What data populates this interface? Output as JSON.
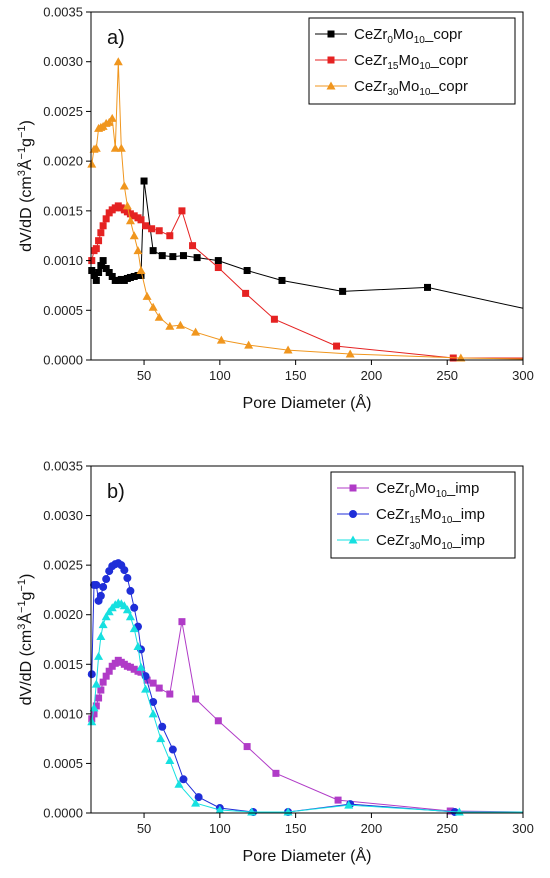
{
  "chart_data": [
    {
      "type": "line",
      "panel_label": "a)",
      "xlabel": "Pore Diameter (Å)",
      "ylabel": {
        "base": "dV/dD (cm",
        "sup1": "3",
        "mid1": "Å",
        "sup2": "−1",
        "mid2": "g",
        "sup3": "−1",
        "end": ")"
      },
      "xlim": [
        15,
        300
      ],
      "ylim": [
        0,
        0.0035
      ],
      "xticks": [
        50,
        100,
        150,
        200,
        250,
        300
      ],
      "yticks": [
        0.0,
        0.0005,
        0.001,
        0.0015,
        0.002,
        0.0025,
        0.003,
        0.0035
      ],
      "xtick_labels": [
        "50",
        "100",
        "150",
        "200",
        "250",
        "300"
      ],
      "ytick_labels": [
        "0.0000",
        "0.0005",
        "0.0010",
        "0.0015",
        "0.0020",
        "0.0025",
        "0.0030",
        "0.0035"
      ],
      "legend_position": "top-right",
      "series": [
        {
          "name": "CeZr0Mo10_copr",
          "legend": {
            "a": "CeZr",
            "sub1": "0",
            "b": "Mo",
            "sub2": "10",
            "c": "_copr"
          },
          "color": "#000000",
          "marker": "square",
          "x": [
            15.5,
            17,
            18.5,
            20,
            21.5,
            23,
            25,
            27,
            29,
            31,
            33,
            35,
            37,
            39,
            41,
            43.5,
            46,
            48,
            50,
            56,
            62,
            69,
            76,
            85,
            99,
            118,
            141,
            181,
            237,
            300
          ],
          "y": [
            0.0009,
            0.00085,
            0.0008,
            0.00088,
            0.00095,
            0.001,
            0.00092,
            0.00088,
            0.00084,
            0.0008,
            0.0008,
            0.00081,
            0.0008,
            0.00082,
            0.00083,
            0.00084,
            0.00085,
            0.00085,
            0.0018,
            0.0011,
            0.00105,
            0.00104,
            0.00105,
            0.00103,
            0.001,
            0.0009,
            0.0008,
            0.00069,
            0.00073,
            0.00052
          ]
        },
        {
          "name": "CeZr15Mo10_copr",
          "legend": {
            "a": "CeZr",
            "sub1": "15",
            "b": "Mo",
            "sub2": "10",
            "c": "_copr"
          },
          "color": "#e52222",
          "marker": "square",
          "x": [
            15.5,
            17,
            18.5,
            20,
            21.5,
            23,
            25,
            27,
            29,
            31,
            33,
            35,
            37,
            39,
            41,
            43.5,
            46,
            48,
            51,
            55,
            60,
            67,
            75,
            82,
            99,
            117,
            136,
            177,
            254,
            300
          ],
          "y": [
            0.001,
            0.0011,
            0.00112,
            0.0012,
            0.00128,
            0.00135,
            0.00142,
            0.00148,
            0.00151,
            0.00153,
            0.00155,
            0.00153,
            0.00151,
            0.00149,
            0.00147,
            0.00145,
            0.00143,
            0.00141,
            0.00135,
            0.00132,
            0.0013,
            0.00125,
            0.0015,
            0.00115,
            0.00093,
            0.00067,
            0.00041,
            0.00014,
            2e-05,
            2e-05
          ]
        },
        {
          "name": "CeZr30Mo10_copr",
          "legend": {
            "a": "CeZr",
            "sub1": "30",
            "b": "Mo",
            "sub2": "10",
            "c": "_copr"
          },
          "color": "#f0961e",
          "marker": "triangle",
          "x": [
            15.5,
            17,
            18.5,
            20,
            21.5,
            23,
            25,
            27,
            29,
            31,
            33,
            35,
            37,
            39,
            41,
            43.5,
            46,
            48,
            52,
            56,
            60,
            67,
            74,
            84,
            101,
            119,
            145,
            186,
            259,
            300
          ],
          "y": [
            0.00197,
            0.00212,
            0.00213,
            0.00233,
            0.00234,
            0.00235,
            0.00238,
            0.00239,
            0.00243,
            0.00213,
            0.003,
            0.00213,
            0.00175,
            0.00155,
            0.0014,
            0.00125,
            0.0011,
            0.0009,
            0.00064,
            0.00053,
            0.00043,
            0.00034,
            0.00035,
            0.00028,
            0.0002,
            0.00015,
            0.0001,
            6e-05,
            2e-05,
            1e-05
          ]
        }
      ]
    },
    {
      "type": "line",
      "panel_label": "b)",
      "xlabel": "Pore Diameter (Å)",
      "ylabel": {
        "base": "dV/dD (cm",
        "sup1": "3",
        "mid1": "Å",
        "sup2": "−1",
        "mid2": "g",
        "sup3": "−1",
        "end": ")"
      },
      "xlim": [
        15,
        300
      ],
      "ylim": [
        0,
        0.0035
      ],
      "xticks": [
        50,
        100,
        150,
        200,
        250,
        300
      ],
      "yticks": [
        0.0,
        0.0005,
        0.001,
        0.0015,
        0.002,
        0.0025,
        0.003,
        0.0035
      ],
      "xtick_labels": [
        "50",
        "100",
        "150",
        "200",
        "250",
        "300"
      ],
      "ytick_labels": [
        "0.0000",
        "0.0005",
        "0.0010",
        "0.0015",
        "0.0020",
        "0.0025",
        "0.0030",
        "0.0035"
      ],
      "legend_position": "top-right",
      "series": [
        {
          "name": "CeZr0Mo10_imp",
          "legend": {
            "a": "CeZr",
            "sub1": "0",
            "b": "Mo",
            "sub2": "10",
            "c": "_imp"
          },
          "color": "#b03bc7",
          "marker": "square",
          "x": [
            15.5,
            17,
            18.5,
            20,
            21.5,
            23,
            25,
            27,
            29,
            31,
            33,
            35,
            37,
            39,
            41,
            43.5,
            46,
            48,
            52,
            56,
            60,
            67,
            75,
            84,
            99,
            118,
            137,
            178,
            252,
            300
          ],
          "y": [
            0.00095,
            0.001,
            0.00108,
            0.00116,
            0.00124,
            0.00132,
            0.00138,
            0.00143,
            0.00148,
            0.00151,
            0.00154,
            0.00152,
            0.0015,
            0.00148,
            0.00147,
            0.00145,
            0.00143,
            0.00142,
            0.00134,
            0.00131,
            0.00126,
            0.0012,
            0.00193,
            0.00115,
            0.00093,
            0.00067,
            0.0004,
            0.00013,
            2e-05,
            1e-05
          ]
        },
        {
          "name": "CeZr15Mo10_imp",
          "legend": {
            "a": "CeZr",
            "sub1": "15",
            "b": "Mo",
            "sub2": "10",
            "c": "_imp"
          },
          "color": "#1f2ed8",
          "marker": "circle",
          "x": [
            15.5,
            17,
            18.5,
            20,
            21.5,
            23,
            25,
            27,
            29,
            31,
            33,
            35,
            37,
            39,
            41,
            43.5,
            46,
            48,
            51,
            56,
            62,
            69,
            76,
            86,
            100,
            122,
            145,
            186,
            255,
            300
          ],
          "y": [
            0.0014,
            0.0023,
            0.0023,
            0.00214,
            0.00219,
            0.00228,
            0.00236,
            0.00244,
            0.00249,
            0.00251,
            0.00252,
            0.0025,
            0.00245,
            0.00237,
            0.00224,
            0.00207,
            0.00188,
            0.00165,
            0.00138,
            0.00112,
            0.00087,
            0.00064,
            0.00034,
            0.00016,
            5e-05,
            1e-05,
            1e-05,
            9e-05,
            1e-05,
            1e-05
          ]
        },
        {
          "name": "CeZr30Mo10_imp",
          "legend": {
            "a": "CeZr",
            "sub1": "30",
            "b": "Mo",
            "sub2": "10",
            "c": "_imp"
          },
          "color": "#16e0e0",
          "marker": "triangle",
          "x": [
            15.5,
            17,
            18.5,
            20,
            21.5,
            23,
            25,
            27,
            29,
            31,
            33,
            35,
            37,
            39,
            41,
            43.5,
            46,
            48,
            51,
            56,
            61,
            67,
            73,
            84,
            100,
            121,
            145,
            185,
            258,
            300
          ],
          "y": [
            0.00092,
            0.00106,
            0.0013,
            0.00158,
            0.00178,
            0.0019,
            0.00198,
            0.00203,
            0.00207,
            0.0021,
            0.00212,
            0.00211,
            0.00209,
            0.00205,
            0.00198,
            0.00186,
            0.00168,
            0.00147,
            0.00125,
            0.001,
            0.00075,
            0.00053,
            0.00029,
            0.0001,
            3e-05,
            1e-05,
            1e-05,
            8e-05,
            1e-05,
            1e-05
          ]
        }
      ]
    }
  ]
}
